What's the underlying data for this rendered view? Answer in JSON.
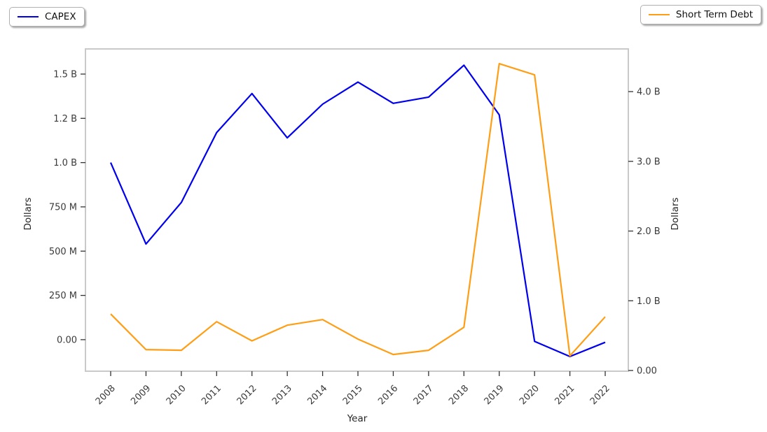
{
  "chart_data": {
    "type": "line",
    "title": "",
    "xlabel": "Year",
    "ylabel_left": "Dollars",
    "ylabel_right": "Dollars",
    "x_tick_labels": [
      "2008",
      "2009",
      "2010",
      "2011",
      "2012",
      "2013",
      "2014",
      "2015",
      "2016",
      "2017",
      "2018",
      "2019",
      "2020",
      "2021",
      "2022"
    ],
    "grid": false,
    "ylim_left_billion": [
      -0.178,
      1.642
    ],
    "ylim_right_billion": [
      -0.01,
      4.612
    ],
    "left_axis": {
      "ticks": [
        {
          "label": "1.5 B",
          "value": 1.5
        },
        {
          "label": "1.2 B",
          "value": 1.25
        },
        {
          "label": "1.0 B",
          "value": 1.0
        },
        {
          "label": "750 M",
          "value": 0.75
        },
        {
          "label": "500 M",
          "value": 0.5
        },
        {
          "label": "250 M",
          "value": 0.25
        },
        {
          "label": "0.00",
          "value": 0
        }
      ]
    },
    "right_axis": {
      "ticks": [
        {
          "label": "4.0 B",
          "value": 4.0
        },
        {
          "label": "3.0 B",
          "value": 3.0
        },
        {
          "label": "2.0 B",
          "value": 2.0
        },
        {
          "label": "1.0 B",
          "value": 1.0
        },
        {
          "label": "0.00",
          "value": 0
        }
      ]
    },
    "series": [
      {
        "name": "CAPEX",
        "axis": "left",
        "color": "#0000ee",
        "legend_position": "top-left",
        "values_billion": [
          1.0,
          0.54,
          0.775,
          1.17,
          1.39,
          1.14,
          1.33,
          1.455,
          1.335,
          1.37,
          1.55,
          1.27,
          -0.01,
          -0.095,
          -0.015
        ]
      },
      {
        "name": "Short Term Debt",
        "axis": "right",
        "color": "#ff9e15",
        "legend_position": "top-right",
        "values_billion": [
          0.81,
          0.3,
          0.29,
          0.7,
          0.425,
          0.65,
          0.73,
          0.45,
          0.23,
          0.29,
          0.62,
          4.4,
          4.24,
          0.21,
          0.77
        ]
      }
    ]
  }
}
